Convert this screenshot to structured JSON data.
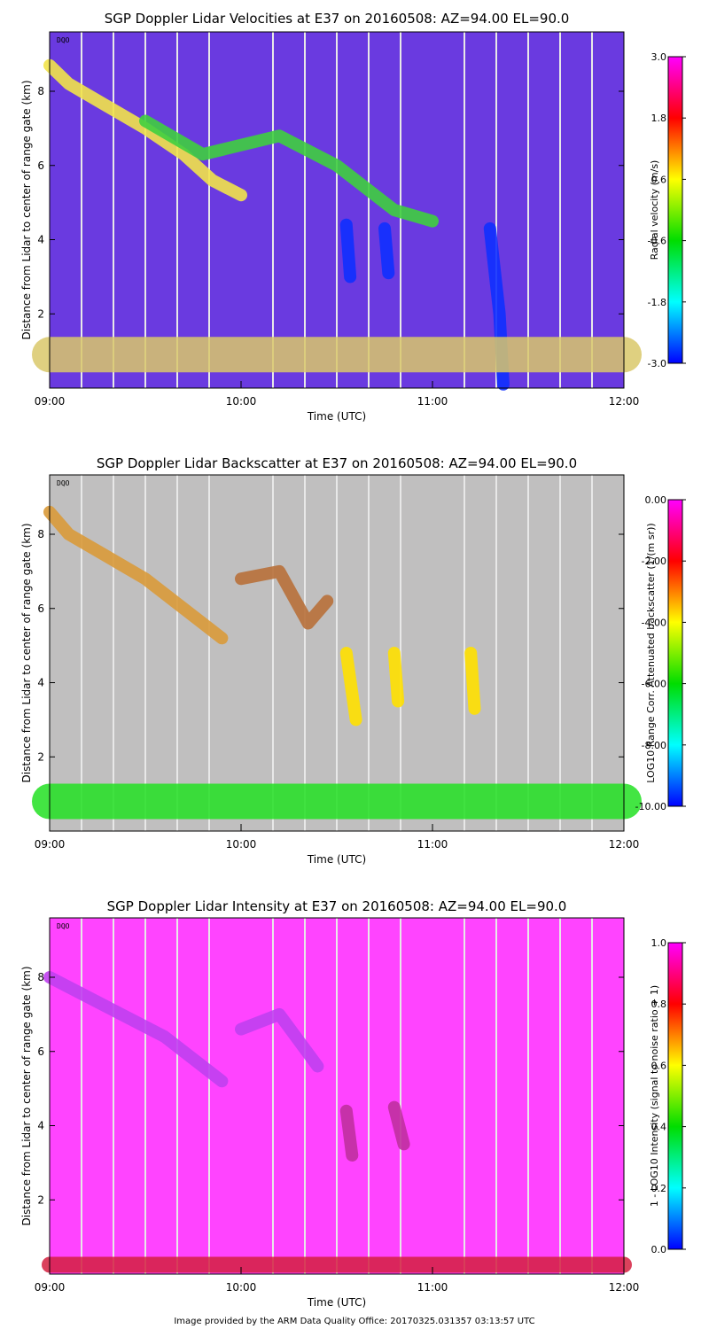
{
  "colors": {
    "background": "#ffffff",
    "gridline": "#e8e8e8",
    "axis": "#000000"
  },
  "footer": {
    "credit": "Image provided by the ARM Data Quality Office: 20170325.031357 03:13:57 UTC"
  },
  "chart_data": [
    {
      "type": "heatmap",
      "title": "SGP Doppler Lidar Velocities at E37 on 20160508: AZ=94.00 EL=90.0",
      "xlabel": "Time (UTC)",
      "ylabel": "Distance from Lidar to center of range gate (km)",
      "x_ticks": [
        "09:00",
        "10:00",
        "11:00",
        "12:00"
      ],
      "xlim": [
        9,
        12
      ],
      "y_ticks": [
        "2",
        "4",
        "6",
        "8"
      ],
      "ylim": [
        0,
        9.6
      ],
      "qc_label": "DQO",
      "colorbar": {
        "label": "Radial velocity (m/s)",
        "ticks": [
          "3.0",
          "1.8",
          "0.6",
          "-0.6",
          "-1.8",
          "-3.0"
        ],
        "range": [
          -3.0,
          3.0
        ],
        "colors": [
          "#ff00ff",
          "#ff0000",
          "#ffff00",
          "#00dd00",
          "#00ffff",
          "#0000ff"
        ]
      },
      "background_color": "#6a3ae0",
      "features": [
        {
          "name": "cloud-layer",
          "color": "#f2e34a",
          "points": [
            [
              9.0,
              8.7
            ],
            [
              9.1,
              8.2
            ],
            [
              9.3,
              7.6
            ],
            [
              9.5,
              7.0
            ],
            [
              9.7,
              6.3
            ],
            [
              9.85,
              5.6
            ],
            [
              10.0,
              5.2
            ]
          ]
        },
        {
          "name": "green-band",
          "color": "#3fcf3f",
          "points": [
            [
              9.5,
              7.2
            ],
            [
              9.8,
              6.3
            ],
            [
              10.2,
              6.8
            ],
            [
              10.5,
              6.0
            ],
            [
              10.8,
              4.8
            ],
            [
              11.0,
              4.5
            ]
          ]
        },
        {
          "name": "downdraft-1",
          "color": "#1030ff",
          "points": [
            [
              10.55,
              4.4
            ],
            [
              10.57,
              3.0
            ]
          ]
        },
        {
          "name": "downdraft-2",
          "color": "#1030ff",
          "points": [
            [
              10.75,
              4.3
            ],
            [
              10.77,
              3.1
            ]
          ]
        },
        {
          "name": "downdraft-3",
          "color": "#1030ff",
          "points": [
            [
              11.3,
              4.3
            ],
            [
              11.35,
              2.0
            ],
            [
              11.37,
              0.1
            ]
          ]
        },
        {
          "name": "boundary-layer",
          "color": "#d9c86a",
          "points": [
            [
              9.0,
              0.9
            ],
            [
              12.0,
              0.9
            ]
          ]
        }
      ]
    },
    {
      "type": "heatmap",
      "title": "SGP Doppler Lidar Backscatter at E37 on 20160508: AZ=94.00 EL=90.0",
      "xlabel": "Time (UTC)",
      "ylabel": "Distance from Lidar to center of range gate (km)",
      "x_ticks": [
        "09:00",
        "10:00",
        "11:00",
        "12:00"
      ],
      "xlim": [
        9,
        12
      ],
      "y_ticks": [
        "2",
        "4",
        "6",
        "8"
      ],
      "ylim": [
        0,
        9.6
      ],
      "qc_label": "DQO",
      "colorbar": {
        "label": "LOG10 Range Corr. Attenuated backscatter (1/(m sr))",
        "ticks": [
          "0.00",
          "-2.00",
          "-4.00",
          "-6.00",
          "-8.00",
          "-10.00"
        ],
        "range": [
          -10.0,
          0.0
        ],
        "colors": [
          "#ff00ff",
          "#ff0000",
          "#ffff00",
          "#00dd00",
          "#00ffff",
          "#0000ff"
        ]
      },
      "background_color": "#c0bfbf",
      "features": [
        {
          "name": "cloud-layer",
          "color": "#d99a3a",
          "points": [
            [
              9.0,
              8.6
            ],
            [
              9.1,
              8.0
            ],
            [
              9.3,
              7.4
            ],
            [
              9.5,
              6.8
            ],
            [
              9.7,
              6.0
            ],
            [
              9.9,
              5.2
            ]
          ]
        },
        {
          "name": "cloud-upper",
          "color": "#b8703a",
          "points": [
            [
              10.0,
              6.8
            ],
            [
              10.2,
              7.0
            ],
            [
              10.35,
              5.6
            ],
            [
              10.45,
              6.2
            ]
          ]
        },
        {
          "name": "virga-1",
          "color": "#ffe000",
          "points": [
            [
              10.55,
              4.8
            ],
            [
              10.6,
              3.0
            ]
          ]
        },
        {
          "name": "virga-2",
          "color": "#ffe000",
          "points": [
            [
              10.8,
              4.8
            ],
            [
              10.82,
              3.5
            ]
          ]
        },
        {
          "name": "virga-3",
          "color": "#ffe000",
          "points": [
            [
              11.2,
              4.8
            ],
            [
              11.22,
              3.3
            ]
          ]
        },
        {
          "name": "boundary-layer",
          "color": "#22e022",
          "points": [
            [
              9.0,
              0.8
            ],
            [
              12.0,
              0.8
            ]
          ]
        }
      ]
    },
    {
      "type": "heatmap",
      "title": "SGP Doppler Lidar Intensity at E37 on 20160508: AZ=94.00 EL=90.0",
      "xlabel": "Time (UTC)",
      "ylabel": "Distance from Lidar to center of range gate (km)",
      "x_ticks": [
        "09:00",
        "10:00",
        "11:00",
        "12:00"
      ],
      "xlim": [
        9,
        12
      ],
      "y_ticks": [
        "2",
        "4",
        "6",
        "8"
      ],
      "ylim": [
        0,
        9.6
      ],
      "qc_label": "DQO",
      "colorbar": {
        "label": "1 - LOG10 Intensity (signal to noise ratio + 1)",
        "ticks": [
          "1.0",
          "0.8",
          "0.6",
          "0.4",
          "0.2",
          "0.0"
        ],
        "range": [
          0.0,
          1.0
        ],
        "colors": [
          "#ff00ff",
          "#ff0000",
          "#ffff00",
          "#00dd00",
          "#00ffff",
          "#0000ff"
        ]
      },
      "background_color": "#ff44ff",
      "features": [
        {
          "name": "cloud-layer",
          "color": "#c040f0",
          "points": [
            [
              9.0,
              8.0
            ],
            [
              9.3,
              7.2
            ],
            [
              9.6,
              6.4
            ],
            [
              9.9,
              5.2
            ]
          ]
        },
        {
          "name": "cloud-upper",
          "color": "#c040f0",
          "points": [
            [
              10.0,
              6.6
            ],
            [
              10.2,
              7.0
            ],
            [
              10.4,
              5.6
            ]
          ]
        },
        {
          "name": "echo-1",
          "color": "#c030a0",
          "points": [
            [
              10.55,
              4.4
            ],
            [
              10.58,
              3.2
            ]
          ]
        },
        {
          "name": "echo-2",
          "color": "#c030a0",
          "points": [
            [
              10.8,
              4.5
            ],
            [
              10.85,
              3.5
            ]
          ]
        },
        {
          "name": "boundary-layer",
          "color": "#d42040",
          "points": [
            [
              9.0,
              0.25
            ],
            [
              12.0,
              0.25
            ]
          ]
        }
      ]
    }
  ]
}
